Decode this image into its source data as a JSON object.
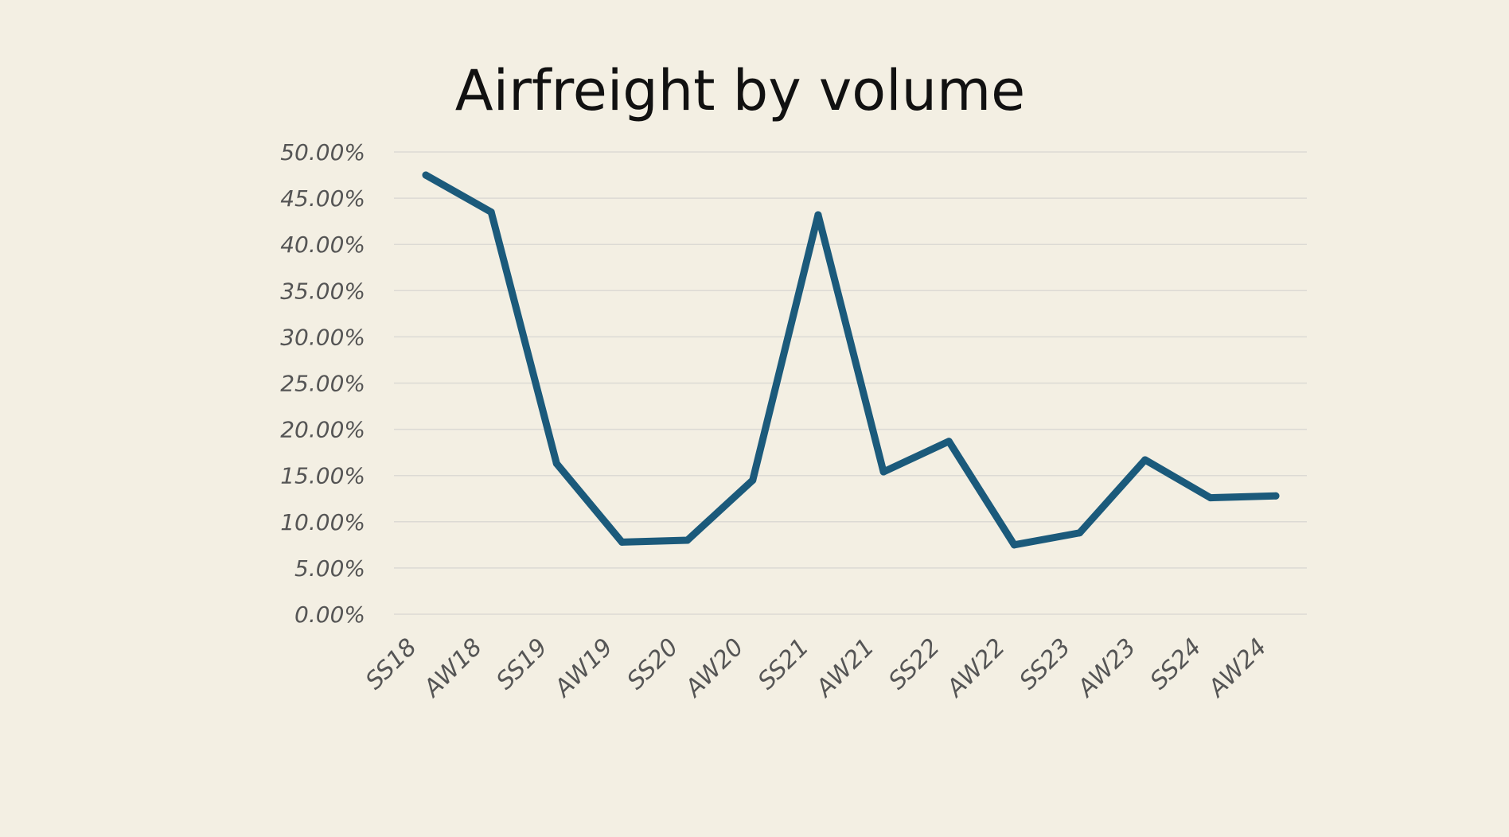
{
  "colors": {
    "background": "#f3efe3",
    "line": "#1b5a7b",
    "grid": "#dcdad4",
    "title": "#111111",
    "tick_labels": "#555555"
  },
  "chart_data": {
    "type": "line",
    "title": "Airfreight by volume",
    "xlabel": "",
    "ylabel": "",
    "categories": [
      "SS18",
      "AW18",
      "SS19",
      "AW19",
      "SS20",
      "AW20",
      "SS21",
      "AW21",
      "SS22",
      "AW22",
      "SS23",
      "AW23",
      "SS24",
      "AW24"
    ],
    "series": [
      {
        "values": [
          47.5,
          43.5,
          16.3,
          7.8,
          8.0,
          14.5,
          43.2,
          15.4,
          18.7,
          7.5,
          8.8,
          16.7,
          12.6,
          12.8
        ]
      }
    ],
    "ylim": [
      0,
      50
    ],
    "yticks": [
      0,
      5,
      10,
      15,
      20,
      25,
      30,
      35,
      40,
      45,
      50
    ],
    "ytick_labels": [
      "0.00%",
      "5.00%",
      "10.00%",
      "15.00%",
      "20.00%",
      "25.00%",
      "30.00%",
      "35.00%",
      "40.00%",
      "45.00%",
      "50.00%"
    ],
    "grid": true,
    "legend": "none"
  }
}
